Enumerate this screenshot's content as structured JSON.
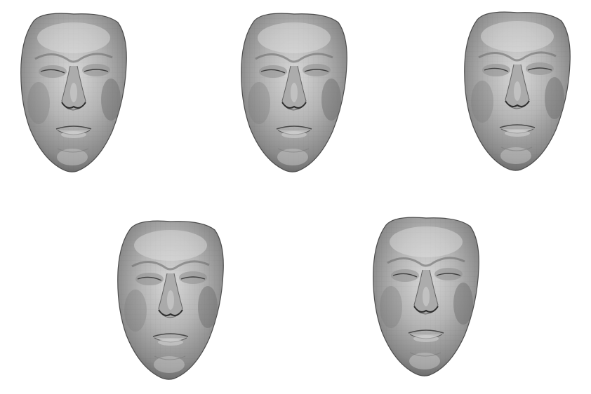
{
  "scene": {
    "background_color": "#ffffff",
    "mesh_color": "#9a9a9a",
    "faces": [
      {
        "name": "face-mesh-1"
      },
      {
        "name": "face-mesh-2"
      },
      {
        "name": "face-mesh-3"
      },
      {
        "name": "face-mesh-4"
      },
      {
        "name": "face-mesh-5"
      }
    ]
  }
}
